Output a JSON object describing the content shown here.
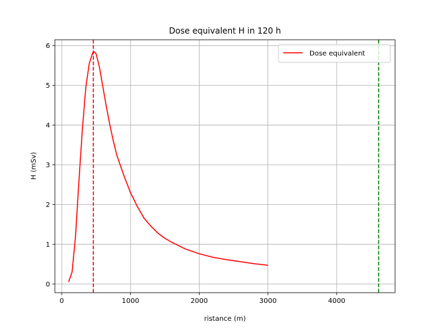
{
  "chart_data": {
    "type": "line",
    "title": "Dose equivalent H in 120 h",
    "xlabel": "ristance (m)",
    "ylabel": "H (mSv)",
    "xlim": [
      -100,
      4850
    ],
    "ylim": [
      -0.22,
      6.15
    ],
    "xticks": [
      0,
      1000,
      2000,
      3000,
      4000
    ],
    "yticks": [
      0,
      1,
      2,
      3,
      4,
      5,
      6
    ],
    "grid": true,
    "legend_position": "upper right",
    "series": [
      {
        "name": "Dose equivalent",
        "color": "#ff0000",
        "x": [
          100,
          150,
          200,
          250,
          300,
          350,
          400,
          450,
          470,
          500,
          550,
          600,
          650,
          700,
          750,
          800,
          900,
          1000,
          1100,
          1200,
          1300,
          1400,
          1500,
          1600,
          1800,
          2000,
          2200,
          2400,
          2600,
          2800,
          3000
        ],
        "y": [
          0.05,
          0.3,
          1.2,
          2.6,
          3.9,
          4.95,
          5.55,
          5.82,
          5.85,
          5.8,
          5.45,
          4.95,
          4.45,
          4.0,
          3.6,
          3.25,
          2.75,
          2.3,
          1.95,
          1.65,
          1.45,
          1.28,
          1.15,
          1.05,
          0.88,
          0.76,
          0.67,
          0.61,
          0.56,
          0.51,
          0.47
        ]
      }
    ],
    "vlines": [
      {
        "x": 460,
        "color": "#ff0000",
        "style": "dashed"
      },
      {
        "x": 4610,
        "color": "#008000",
        "style": "dashed"
      }
    ]
  }
}
